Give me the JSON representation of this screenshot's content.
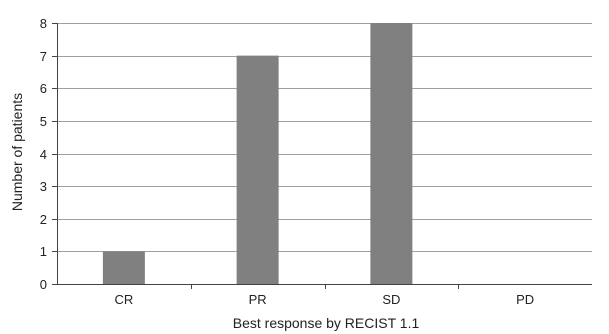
{
  "chart_data": {
    "type": "bar",
    "categories": [
      "CR",
      "PR",
      "SD",
      "PD"
    ],
    "values": [
      1,
      7,
      8,
      0
    ],
    "title": "",
    "xlabel": "Best response by RECIST 1.1",
    "ylabel": "Number of patients",
    "ylim": [
      0,
      8
    ],
    "yticks": [
      "0",
      "1",
      "2",
      "3",
      "4",
      "5",
      "6",
      "7",
      "8"
    ],
    "grid": true,
    "legend": "none",
    "colors": {
      "bar": "#808080",
      "grid": "#a0a0a0",
      "axis": "#444444",
      "text": "#222222"
    }
  }
}
